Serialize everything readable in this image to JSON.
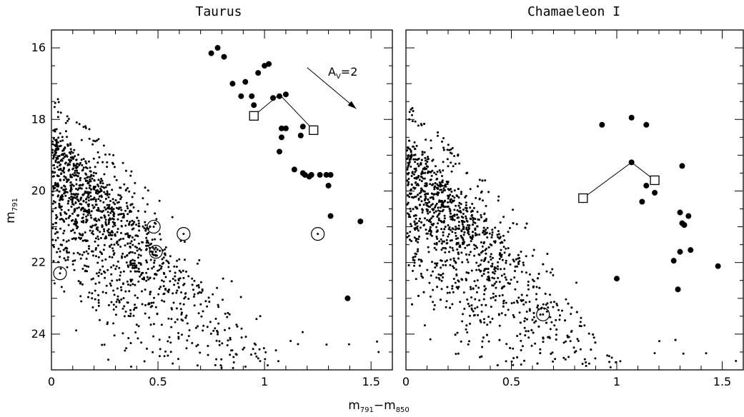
{
  "chart_data": [
    {
      "type": "scatter",
      "title": "Taurus",
      "xlabel": "m791−m850",
      "xlabel_main": "m",
      "xlabel_sub1": "791",
      "xlabel_mid": "−m",
      "xlabel_sub2": "850",
      "ylabel_main": "m",
      "ylabel_sub": "791",
      "xlim": [
        0,
        1.6
      ],
      "ylim": [
        25,
        15.5
      ],
      "y_inverted": true,
      "xticks": [
        "0",
        "0.5",
        "1",
        "1.5"
      ],
      "yticks": [
        "16",
        "18",
        "20",
        "22",
        "24"
      ],
      "annotation": {
        "text_main": "A",
        "text_sub": "V",
        "text_rest": "=2",
        "arrow_from": [
          1.2,
          16.55
        ],
        "arrow_to": [
          1.43,
          17.7
        ]
      },
      "series": [
        {
          "marker": "small-dot",
          "count_approx": 1500,
          "distribution": "dense field-star cloud; bright edge rising from about (0, 18) to (0.6, 22) and (1.1, 24); fainter stars to m791 = 25",
          "x": [],
          "y": []
        },
        {
          "marker": "filled-circle",
          "x": [
            0.75,
            0.78,
            0.81,
            0.85,
            0.89,
            0.91,
            0.94,
            0.95,
            0.97,
            1.0,
            1.02,
            1.04,
            1.07,
            1.07,
            1.08,
            1.08,
            1.1,
            1.1,
            1.14,
            1.17,
            1.18,
            1.18,
            1.19,
            1.21,
            1.22,
            1.26,
            1.29,
            1.3,
            1.31,
            1.31,
            1.39,
            1.45
          ],
          "y": [
            16.15,
            16.0,
            16.25,
            17.0,
            17.35,
            16.95,
            17.35,
            17.6,
            16.7,
            16.5,
            16.45,
            17.4,
            17.35,
            18.9,
            18.5,
            18.25,
            17.3,
            18.25,
            19.4,
            18.45,
            18.2,
            19.5,
            19.55,
            19.6,
            19.55,
            19.55,
            19.55,
            19.85,
            19.55,
            20.7,
            23.0,
            20.85
          ]
        },
        {
          "marker": "open-square",
          "x": [
            0.95,
            1.23
          ],
          "y": [
            17.9,
            18.3
          ],
          "connector_apex": [
            1.07,
            17.3
          ]
        },
        {
          "marker": "circled-dot",
          "x": [
            0.04,
            0.48,
            0.49,
            0.62,
            1.25
          ],
          "y": [
            22.3,
            21.0,
            21.7,
            21.2,
            21.2
          ]
        }
      ]
    },
    {
      "type": "scatter",
      "title": "Chamaeleon I",
      "xlim": [
        0,
        1.6
      ],
      "ylim": [
        25,
        15.5
      ],
      "y_inverted": true,
      "xticks": [
        "0",
        "0.5",
        "1",
        "1.5"
      ],
      "yticks": [
        "16",
        "18",
        "20",
        "22",
        "24"
      ],
      "series": [
        {
          "marker": "small-dot",
          "count_approx": 1500,
          "distribution": "dense field-star cloud; bright edge rising from about (0, 18.3) to (0.7, 22) and (1.2, 24); fainter stars to m791 = 25",
          "x": [],
          "y": []
        },
        {
          "marker": "filled-circle",
          "x": [
            0.93,
            1.0,
            1.07,
            1.07,
            1.12,
            1.14,
            1.14,
            1.18,
            1.27,
            1.29,
            1.3,
            1.3,
            1.31,
            1.31,
            1.32,
            1.32,
            1.34,
            1.35,
            1.48
          ],
          "y": [
            18.15,
            22.45,
            17.95,
            19.2,
            20.3,
            18.15,
            19.85,
            20.05,
            21.95,
            22.75,
            20.6,
            21.7,
            19.3,
            20.9,
            20.95,
            20.95,
            20.7,
            21.65,
            22.1
          ]
        },
        {
          "marker": "open-square",
          "x": [
            0.84,
            1.18
          ],
          "y": [
            20.2,
            19.7
          ],
          "connector_apex": [
            1.07,
            19.2
          ]
        },
        {
          "marker": "circled-dot",
          "x": [
            0.65
          ],
          "y": [
            23.45
          ]
        }
      ]
    }
  ]
}
